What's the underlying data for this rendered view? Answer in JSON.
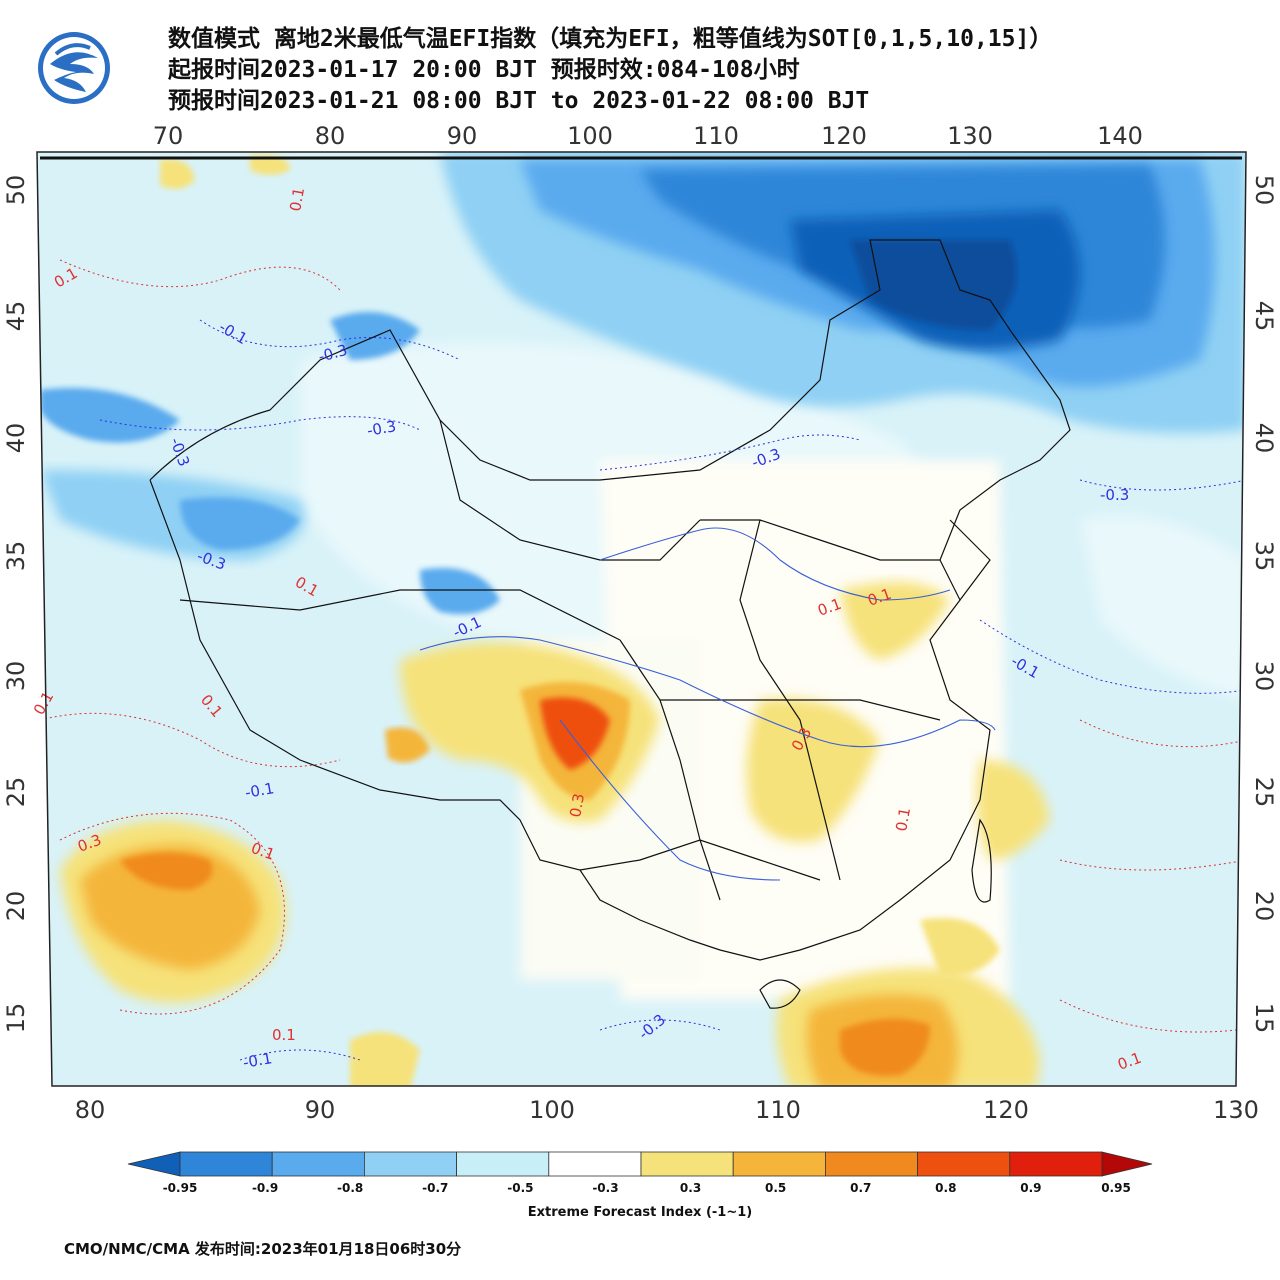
{
  "header": {
    "line1": "数值模式 离地2米最低气温EFI指数（填充为EFI，粗等值线为SOT[0,1,5,10,15]）",
    "line2": "起报时间2023-01-17 20:00 BJT 预报时效:084-108小时",
    "line3": "预报时间2023-01-21 08:00 BJT to 2023-01-22 08:00 BJT"
  },
  "map": {
    "top_lon_labels": [
      "70",
      "80",
      "90",
      "100",
      "110",
      "120",
      "130",
      "140"
    ],
    "bottom_lon_labels": [
      "80",
      "90",
      "100",
      "110",
      "120",
      "130"
    ],
    "left_lat_labels": [
      "50",
      "45",
      "40",
      "35",
      "30",
      "25",
      "20",
      "15"
    ],
    "right_lat_labels": [
      "50",
      "45",
      "40",
      "35",
      "30",
      "25",
      "20",
      "15"
    ],
    "contour_labels": [
      {
        "text": "0.1",
        "color": "red"
      },
      {
        "text": "0.1",
        "color": "red"
      },
      {
        "text": "-0.1",
        "color": "blue"
      },
      {
        "text": "-0.3",
        "color": "blue"
      },
      {
        "text": "-0.3",
        "color": "blue"
      },
      {
        "text": "-0.3",
        "color": "blue"
      },
      {
        "text": "-0.3",
        "color": "blue"
      },
      {
        "text": "-0.3",
        "color": "blue"
      },
      {
        "text": "-0.3",
        "color": "blue"
      },
      {
        "text": "0.1",
        "color": "red"
      },
      {
        "text": "0.1",
        "color": "red"
      },
      {
        "text": "-0.1",
        "color": "blue"
      },
      {
        "text": "0.1",
        "color": "red"
      },
      {
        "text": "0.1",
        "color": "red"
      },
      {
        "text": "0.3",
        "color": "red"
      },
      {
        "text": "0.1",
        "color": "red"
      },
      {
        "text": "-0.1",
        "color": "blue"
      },
      {
        "text": "0.3",
        "color": "red"
      },
      {
        "text": "-0.1",
        "color": "blue"
      },
      {
        "text": "0.1",
        "color": "red"
      },
      {
        "text": "-0.1",
        "color": "blue"
      },
      {
        "text": "-0.3",
        "color": "blue"
      },
      {
        "text": "0.3",
        "color": "red"
      },
      {
        "text": "0.1",
        "color": "red"
      },
      {
        "text": "0.1",
        "color": "red"
      },
      {
        "text": "0.1",
        "color": "red"
      }
    ]
  },
  "colorbar": {
    "labels": [
      "-0.95",
      "-0.9",
      "-0.8",
      "-0.7",
      "-0.5",
      "-0.3",
      "0.3",
      "0.5",
      "0.7",
      "0.8",
      "0.9",
      "0.95"
    ],
    "colors": [
      "#1060b8",
      "#2f86d8",
      "#5aaaee",
      "#8fd0f4",
      "#c8eef8",
      "#ffffff",
      "#f6e27a",
      "#f4b53a",
      "#f08a1e",
      "#ee5010",
      "#e0200c",
      "#b40808"
    ],
    "title": "Extreme Forecast Index (-1~1)"
  },
  "footer": {
    "text": "CMO/NMC/CMA 发布时间:2023年01月18日06时30分"
  }
}
